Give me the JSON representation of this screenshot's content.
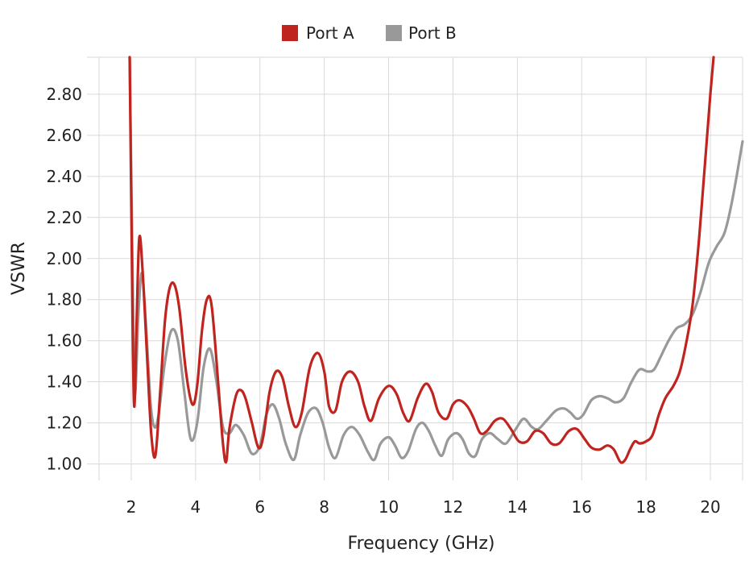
{
  "chart_data": {
    "type": "line",
    "title": "",
    "xlabel": "Frequency (GHz)",
    "ylabel": "VSWR",
    "xlim": [
      1,
      21
    ],
    "ylim": [
      0.92,
      2.98
    ],
    "xticks": [
      2,
      4,
      6,
      8,
      10,
      12,
      14,
      16,
      18,
      20
    ],
    "xtick_labels": [
      "2",
      "4",
      "6",
      "8",
      "10",
      "12",
      "14",
      "16",
      "18",
      "20"
    ],
    "yticks": [
      1.0,
      1.2,
      1.4,
      1.6,
      1.8,
      2.0,
      2.2,
      2.4,
      2.6,
      2.8
    ],
    "ytick_labels": [
      "1.00",
      "1.20",
      "1.40",
      "1.60",
      "1.80",
      "2.00",
      "2.20",
      "2.40",
      "2.60",
      "2.80"
    ],
    "grid": true,
    "legend": {
      "position": "top-center",
      "items": [
        {
          "label": "Port A",
          "color": "#c0241f"
        },
        {
          "label": "Port B",
          "color": "#999999"
        }
      ]
    },
    "series": [
      {
        "name": "Port A",
        "color": "#c0241f",
        "points": [
          [
            1.95,
            2.98
          ],
          [
            2.0,
            2.3
          ],
          [
            2.05,
            1.6
          ],
          [
            2.1,
            1.28
          ],
          [
            2.17,
            1.7
          ],
          [
            2.25,
            2.1
          ],
          [
            2.35,
            1.95
          ],
          [
            2.5,
            1.5
          ],
          [
            2.62,
            1.15
          ],
          [
            2.75,
            1.04
          ],
          [
            2.9,
            1.35
          ],
          [
            3.05,
            1.7
          ],
          [
            3.2,
            1.86
          ],
          [
            3.35,
            1.87
          ],
          [
            3.5,
            1.75
          ],
          [
            3.7,
            1.45
          ],
          [
            3.9,
            1.29
          ],
          [
            4.05,
            1.38
          ],
          [
            4.2,
            1.65
          ],
          [
            4.35,
            1.8
          ],
          [
            4.5,
            1.77
          ],
          [
            4.7,
            1.4
          ],
          [
            4.85,
            1.1
          ],
          [
            4.95,
            1.01
          ],
          [
            5.05,
            1.17
          ],
          [
            5.25,
            1.33
          ],
          [
            5.4,
            1.36
          ],
          [
            5.55,
            1.32
          ],
          [
            5.75,
            1.2
          ],
          [
            5.95,
            1.08
          ],
          [
            6.1,
            1.13
          ],
          [
            6.3,
            1.35
          ],
          [
            6.5,
            1.45
          ],
          [
            6.7,
            1.42
          ],
          [
            6.9,
            1.28
          ],
          [
            7.1,
            1.18
          ],
          [
            7.3,
            1.25
          ],
          [
            7.55,
            1.47
          ],
          [
            7.8,
            1.54
          ],
          [
            8.0,
            1.45
          ],
          [
            8.15,
            1.28
          ],
          [
            8.35,
            1.26
          ],
          [
            8.55,
            1.4
          ],
          [
            8.8,
            1.45
          ],
          [
            9.05,
            1.4
          ],
          [
            9.25,
            1.28
          ],
          [
            9.45,
            1.21
          ],
          [
            9.7,
            1.32
          ],
          [
            10.0,
            1.38
          ],
          [
            10.25,
            1.34
          ],
          [
            10.45,
            1.25
          ],
          [
            10.65,
            1.21
          ],
          [
            10.9,
            1.32
          ],
          [
            11.15,
            1.39
          ],
          [
            11.35,
            1.35
          ],
          [
            11.55,
            1.25
          ],
          [
            11.8,
            1.22
          ],
          [
            12.0,
            1.29
          ],
          [
            12.2,
            1.31
          ],
          [
            12.45,
            1.28
          ],
          [
            12.65,
            1.22
          ],
          [
            12.85,
            1.15
          ],
          [
            13.05,
            1.16
          ],
          [
            13.3,
            1.21
          ],
          [
            13.55,
            1.22
          ],
          [
            13.8,
            1.17
          ],
          [
            14.05,
            1.11
          ],
          [
            14.3,
            1.11
          ],
          [
            14.55,
            1.16
          ],
          [
            14.8,
            1.15
          ],
          [
            15.05,
            1.1
          ],
          [
            15.3,
            1.1
          ],
          [
            15.6,
            1.16
          ],
          [
            15.85,
            1.17
          ],
          [
            16.1,
            1.12
          ],
          [
            16.3,
            1.08
          ],
          [
            16.55,
            1.07
          ],
          [
            16.8,
            1.09
          ],
          [
            17.0,
            1.07
          ],
          [
            17.2,
            1.01
          ],
          [
            17.35,
            1.02
          ],
          [
            17.5,
            1.07
          ],
          [
            17.65,
            1.11
          ],
          [
            17.8,
            1.1
          ],
          [
            18.0,
            1.11
          ],
          [
            18.2,
            1.14
          ],
          [
            18.4,
            1.24
          ],
          [
            18.6,
            1.32
          ],
          [
            18.85,
            1.38
          ],
          [
            19.05,
            1.45
          ],
          [
            19.25,
            1.59
          ],
          [
            19.45,
            1.78
          ],
          [
            19.65,
            2.1
          ],
          [
            19.85,
            2.5
          ],
          [
            20.0,
            2.8
          ],
          [
            20.1,
            2.98
          ]
        ]
      },
      {
        "name": "Port B",
        "color": "#999999",
        "points": [
          [
            1.95,
            2.98
          ],
          [
            2.02,
            2.2
          ],
          [
            2.08,
            1.5
          ],
          [
            2.13,
            1.35
          ],
          [
            2.22,
            1.72
          ],
          [
            2.33,
            1.93
          ],
          [
            2.45,
            1.7
          ],
          [
            2.6,
            1.3
          ],
          [
            2.72,
            1.18
          ],
          [
            2.85,
            1.24
          ],
          [
            3.05,
            1.5
          ],
          [
            3.25,
            1.65
          ],
          [
            3.45,
            1.6
          ],
          [
            3.65,
            1.35
          ],
          [
            3.85,
            1.12
          ],
          [
            4.05,
            1.2
          ],
          [
            4.25,
            1.47
          ],
          [
            4.45,
            1.56
          ],
          [
            4.65,
            1.4
          ],
          [
            4.85,
            1.18
          ],
          [
            5.05,
            1.15
          ],
          [
            5.25,
            1.19
          ],
          [
            5.5,
            1.14
          ],
          [
            5.75,
            1.05
          ],
          [
            6.0,
            1.09
          ],
          [
            6.2,
            1.24
          ],
          [
            6.4,
            1.29
          ],
          [
            6.6,
            1.22
          ],
          [
            6.8,
            1.1
          ],
          [
            7.05,
            1.02
          ],
          [
            7.25,
            1.14
          ],
          [
            7.5,
            1.25
          ],
          [
            7.75,
            1.27
          ],
          [
            7.95,
            1.2
          ],
          [
            8.15,
            1.08
          ],
          [
            8.35,
            1.03
          ],
          [
            8.6,
            1.14
          ],
          [
            8.85,
            1.18
          ],
          [
            9.1,
            1.14
          ],
          [
            9.35,
            1.06
          ],
          [
            9.55,
            1.02
          ],
          [
            9.75,
            1.1
          ],
          [
            10.0,
            1.13
          ],
          [
            10.2,
            1.09
          ],
          [
            10.4,
            1.03
          ],
          [
            10.6,
            1.06
          ],
          [
            10.85,
            1.17
          ],
          [
            11.05,
            1.2
          ],
          [
            11.25,
            1.16
          ],
          [
            11.45,
            1.09
          ],
          [
            11.65,
            1.04
          ],
          [
            11.85,
            1.12
          ],
          [
            12.1,
            1.15
          ],
          [
            12.3,
            1.12
          ],
          [
            12.5,
            1.05
          ],
          [
            12.7,
            1.04
          ],
          [
            12.9,
            1.12
          ],
          [
            13.15,
            1.15
          ],
          [
            13.4,
            1.12
          ],
          [
            13.65,
            1.1
          ],
          [
            13.95,
            1.17
          ],
          [
            14.2,
            1.22
          ],
          [
            14.45,
            1.18
          ],
          [
            14.65,
            1.17
          ],
          [
            14.9,
            1.21
          ],
          [
            15.2,
            1.26
          ],
          [
            15.45,
            1.27
          ],
          [
            15.65,
            1.25
          ],
          [
            15.85,
            1.22
          ],
          [
            16.05,
            1.24
          ],
          [
            16.3,
            1.31
          ],
          [
            16.55,
            1.33
          ],
          [
            16.8,
            1.32
          ],
          [
            17.05,
            1.3
          ],
          [
            17.3,
            1.32
          ],
          [
            17.55,
            1.4
          ],
          [
            17.8,
            1.46
          ],
          [
            18.05,
            1.45
          ],
          [
            18.25,
            1.46
          ],
          [
            18.45,
            1.52
          ],
          [
            18.7,
            1.6
          ],
          [
            18.95,
            1.66
          ],
          [
            19.2,
            1.68
          ],
          [
            19.45,
            1.73
          ],
          [
            19.7,
            1.84
          ],
          [
            19.95,
            1.98
          ],
          [
            20.2,
            2.06
          ],
          [
            20.45,
            2.13
          ],
          [
            20.7,
            2.3
          ],
          [
            21.0,
            2.57
          ]
        ]
      }
    ]
  }
}
